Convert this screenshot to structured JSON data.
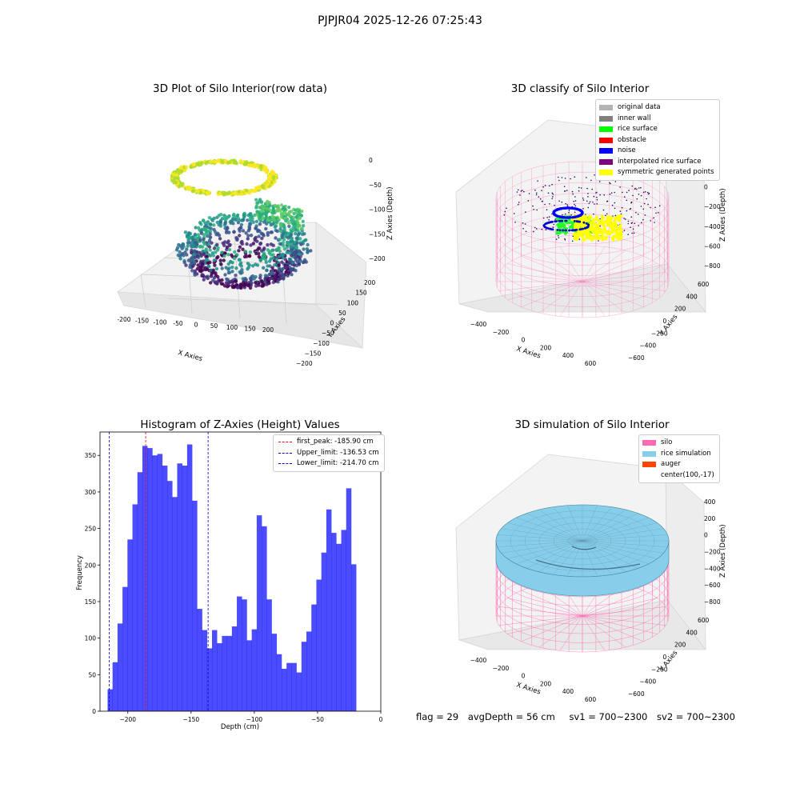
{
  "figure": {
    "suptitle": "PJPJR04 2025-12-26 07:25:43"
  },
  "panels": {
    "p1": {
      "title": "3D Plot of Silo Interior(row data)",
      "x_label": "X Axies",
      "y_label": "Y Axies",
      "z_label": "Z Axies (Depth)",
      "x_ticks": [
        "-200",
        "-150",
        "-100",
        "-50",
        "0",
        "50",
        "100",
        "150",
        "200"
      ],
      "y_ticks": [
        "200",
        "150",
        "100",
        "50",
        "0",
        "−50",
        "−100",
        "−150",
        "−200"
      ],
      "z_ticks": [
        "0",
        "−50",
        "−100",
        "−150",
        "−200"
      ]
    },
    "p2": {
      "title": "3D classify of Silo Interior",
      "x_label": "X Axies",
      "y_label": "Y Axies",
      "z_label": "Z Axies (Depth)",
      "x_ticks": [
        "−400",
        "−200",
        "0",
        "200",
        "400",
        "600"
      ],
      "y_ticks": [
        "600",
        "400",
        "200",
        "0",
        "−200",
        "−400",
        "−600"
      ],
      "z_ticks": [
        "200",
        "0",
        "−200",
        "−400",
        "−600",
        "−800"
      ],
      "legend": [
        {
          "label": "original data",
          "color": "#b3b3b3"
        },
        {
          "label": "inner wall",
          "color": "#808080"
        },
        {
          "label": "rice surface",
          "color": "#00ff00"
        },
        {
          "label": "obstacle",
          "color": "#ff0000"
        },
        {
          "label": "noise",
          "color": "#0000ff"
        },
        {
          "label": "interpolated rice surface",
          "color": "#800080"
        },
        {
          "label": "symmetric generated points",
          "color": "#ffff00"
        }
      ]
    },
    "p4": {
      "title": "3D simulation of Silo Interior",
      "x_label": "X Axies",
      "y_label": "Y Axies",
      "z_label": "Z Axies (Depth)",
      "x_ticks": [
        "−400",
        "−200",
        "0",
        "200",
        "400",
        "600"
      ],
      "y_ticks": [
        "600",
        "400",
        "200",
        "0",
        "−200",
        "−400",
        "−600"
      ],
      "z_ticks": [
        "400",
        "200",
        "0",
        "−200",
        "−400",
        "−600",
        "−800"
      ],
      "legend": [
        {
          "label": "silo",
          "color": "#ff69b4"
        },
        {
          "label": "rice simulation",
          "color": "#87ceeb"
        },
        {
          "label": "auger",
          "color": "#ff4500"
        },
        {
          "label": "center(100,-17)",
          "color": ""
        }
      ]
    }
  },
  "chart_data": [
    {
      "type": "histogram",
      "title": "Histogram of Z-Axies (Height) Values",
      "xlabel": "Depth (cm)",
      "ylabel": "Frequency",
      "xlim": [
        -222,
        0
      ],
      "ylim": [
        0,
        382
      ],
      "x_ticks": [
        -200,
        -150,
        -100,
        -50,
        0
      ],
      "x_tick_labels": [
        "−200",
        "−150",
        "−100",
        "−50",
        "0"
      ],
      "y_ticks": [
        0,
        50,
        100,
        150,
        200,
        250,
        300,
        350
      ],
      "bin_start": -216,
      "bin_width": 3.93,
      "bar_color": "#0000ff",
      "values": [
        30,
        67,
        120,
        170,
        235,
        283,
        327,
        363,
        360,
        350,
        352,
        336,
        315,
        293,
        339,
        336,
        365,
        288,
        140,
        111,
        86,
        111,
        93,
        103,
        103,
        116,
        157,
        153,
        97,
        112,
        268,
        253,
        153,
        106,
        78,
        58,
        66,
        66,
        53,
        95,
        109,
        146,
        180,
        217,
        276,
        244,
        229,
        248,
        305,
        201
      ],
      "vlines": [
        {
          "x": -185.9,
          "label": "first_peak: -185.90 cm",
          "color": "#ff0000"
        },
        {
          "x": -136.53,
          "label": "Upper_limit: -136.53 cm",
          "color": "#0000cc"
        },
        {
          "x": -214.7,
          "label": "Lower_limit: -214.70 cm",
          "color": "#0000cc"
        }
      ],
      "legend_position": "upper right",
      "grid": false
    }
  ],
  "footer": {
    "flag": "flag = 29",
    "avg_depth": "avgDepth = 56 cm",
    "sv1": "sv1 = 700~2300",
    "sv2": "sv2 = 700~2300"
  }
}
